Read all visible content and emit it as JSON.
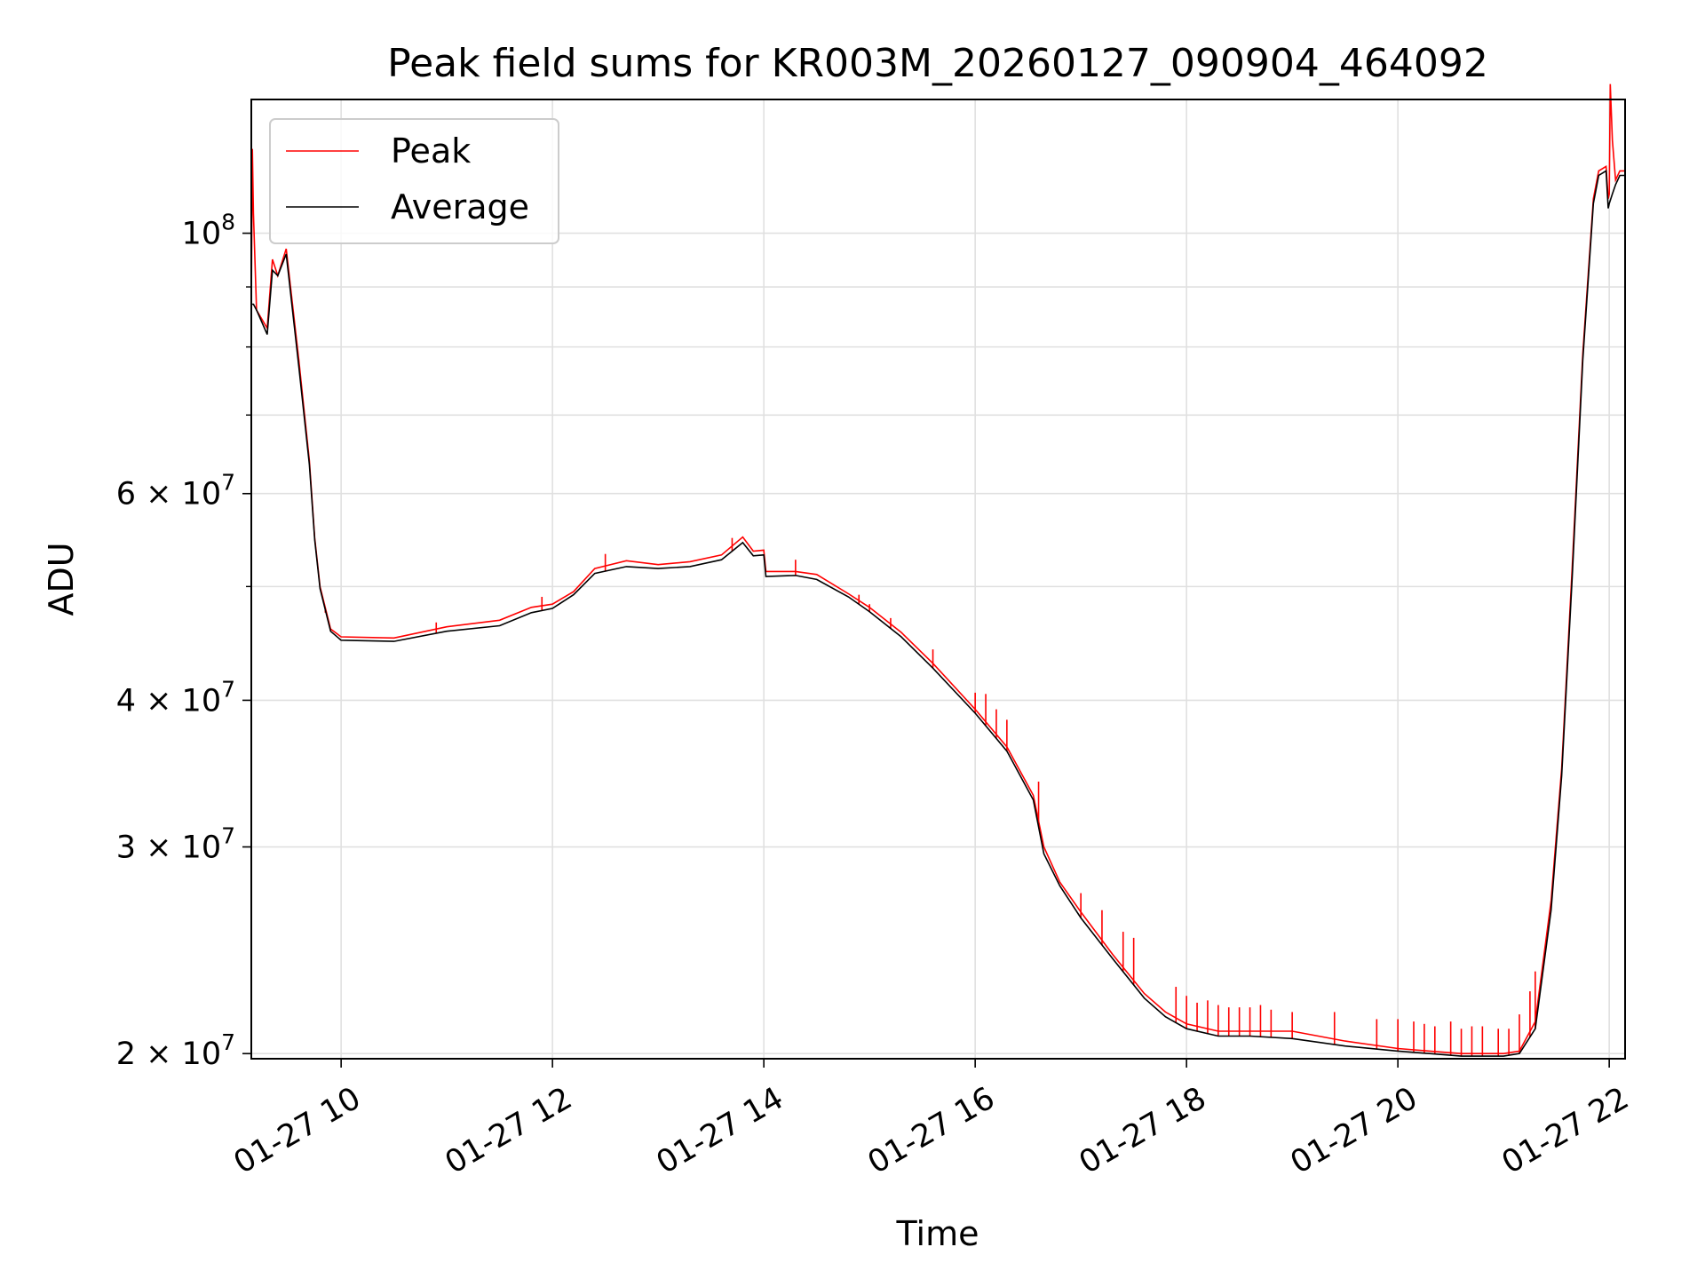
{
  "chart_data": {
    "type": "line",
    "title": "Peak field sums for KR003M_20260127_090904_464092",
    "xlabel": "Time",
    "ylabel": "ADU",
    "yscale": "log",
    "grid": true,
    "legend_location": "top-left",
    "xlim_hours": [
      9.15,
      22.15
    ],
    "ylim": [
      19800000,
      130000000
    ],
    "x_ticks": [
      {
        "value": 10,
        "label": "01-27 10"
      },
      {
        "value": 12,
        "label": "01-27 12"
      },
      {
        "value": 14,
        "label": "01-27 14"
      },
      {
        "value": 16,
        "label": "01-27 16"
      },
      {
        "value": 18,
        "label": "01-27 18"
      },
      {
        "value": 20,
        "label": "01-27 20"
      },
      {
        "value": 22,
        "label": "01-27 22"
      }
    ],
    "y_major_ticks": [
      {
        "value": 20000000,
        "mantissa": "2",
        "exponent": "7",
        "times": "×"
      },
      {
        "value": 30000000,
        "mantissa": "3",
        "exponent": "7",
        "times": "×"
      },
      {
        "value": 40000000,
        "mantissa": "4",
        "exponent": "7",
        "times": "×"
      },
      {
        "value": 60000000,
        "mantissa": "6",
        "exponent": "7",
        "times": "×"
      },
      {
        "value": 100000000,
        "mantissa": "",
        "exponent": "8",
        "times": ""
      }
    ],
    "y_minor_grid": [
      50000000,
      70000000,
      80000000,
      90000000
    ],
    "y_base": "10",
    "series": [
      {
        "name": "Peak",
        "color": "#ff0000",
        "points": [
          [
            9.15,
            87000000
          ],
          [
            9.16,
            118000000
          ],
          [
            9.17,
            104000000
          ],
          [
            9.2,
            86000000
          ],
          [
            9.3,
            83000000
          ],
          [
            9.35,
            95000000
          ],
          [
            9.4,
            92000000
          ],
          [
            9.48,
            97000000
          ],
          [
            9.6,
            78000000
          ],
          [
            9.7,
            64000000
          ],
          [
            9.75,
            55000000
          ],
          [
            9.8,
            50000000
          ],
          [
            9.9,
            46000000
          ],
          [
            10.0,
            45300000
          ],
          [
            10.5,
            45200000
          ],
          [
            11.0,
            46200000
          ],
          [
            11.5,
            46800000
          ],
          [
            11.8,
            48000000
          ],
          [
            12.0,
            48300000
          ],
          [
            12.2,
            49500000
          ],
          [
            12.4,
            51800000
          ],
          [
            12.7,
            52600000
          ],
          [
            13.0,
            52200000
          ],
          [
            13.3,
            52500000
          ],
          [
            13.6,
            53200000
          ],
          [
            13.8,
            55100000
          ],
          [
            13.9,
            53600000
          ],
          [
            14.0,
            53700000
          ],
          [
            14.02,
            51500000
          ],
          [
            14.3,
            51500000
          ],
          [
            14.5,
            51200000
          ],
          [
            14.8,
            49300000
          ],
          [
            15.0,
            48000000
          ],
          [
            15.3,
            45700000
          ],
          [
            15.6,
            43000000
          ],
          [
            16.0,
            39300000
          ],
          [
            16.3,
            36500000
          ],
          [
            16.55,
            33200000
          ],
          [
            16.65,
            30000000
          ],
          [
            16.8,
            28000000
          ],
          [
            17.0,
            26400000
          ],
          [
            17.3,
            24300000
          ],
          [
            17.6,
            22500000
          ],
          [
            17.8,
            21700000
          ],
          [
            18.0,
            21200000
          ],
          [
            18.3,
            20900000
          ],
          [
            18.6,
            20900000
          ],
          [
            19.0,
            20900000
          ],
          [
            19.5,
            20500000
          ],
          [
            20.0,
            20200000
          ],
          [
            20.3,
            20100000
          ],
          [
            20.6,
            20000000
          ],
          [
            20.8,
            20000000
          ],
          [
            21.0,
            20000000
          ],
          [
            21.15,
            20100000
          ],
          [
            21.3,
            21300000
          ],
          [
            21.45,
            27000000
          ],
          [
            21.55,
            35000000
          ],
          [
            21.65,
            52000000
          ],
          [
            21.75,
            79000000
          ],
          [
            21.85,
            107000000
          ],
          [
            21.9,
            113000000
          ],
          [
            21.97,
            114000000
          ],
          [
            21.99,
            107000000
          ],
          [
            22.0,
            108000000
          ],
          [
            22.01,
            134000000
          ],
          [
            22.03,
            120000000
          ],
          [
            22.06,
            111000000
          ],
          [
            22.1,
            113000000
          ],
          [
            22.15,
            113000000
          ]
        ],
        "spikes": [
          [
            9.85,
            47500000
          ],
          [
            10.9,
            46600000
          ],
          [
            11.9,
            49000000
          ],
          [
            12.5,
            53300000
          ],
          [
            13.7,
            55000000
          ],
          [
            14.3,
            52700000
          ],
          [
            14.9,
            49200000
          ],
          [
            15.0,
            48300000
          ],
          [
            15.2,
            47000000
          ],
          [
            15.6,
            44200000
          ],
          [
            16.0,
            40600000
          ],
          [
            16.1,
            40500000
          ],
          [
            16.2,
            39300000
          ],
          [
            16.3,
            38500000
          ],
          [
            16.6,
            34100000
          ],
          [
            17.0,
            27400000
          ],
          [
            17.2,
            26500000
          ],
          [
            17.4,
            25400000
          ],
          [
            17.5,
            25100000
          ],
          [
            17.9,
            22800000
          ],
          [
            18.0,
            22400000
          ],
          [
            18.1,
            22100000
          ],
          [
            18.2,
            22200000
          ],
          [
            18.3,
            22000000
          ],
          [
            18.4,
            21900000
          ],
          [
            18.5,
            21900000
          ],
          [
            18.6,
            21900000
          ],
          [
            18.7,
            22000000
          ],
          [
            18.8,
            21800000
          ],
          [
            19.0,
            21700000
          ],
          [
            19.4,
            21700000
          ],
          [
            19.8,
            21400000
          ],
          [
            20.0,
            21400000
          ],
          [
            20.15,
            21300000
          ],
          [
            20.25,
            21200000
          ],
          [
            20.35,
            21100000
          ],
          [
            20.5,
            21300000
          ],
          [
            20.6,
            21000000
          ],
          [
            20.7,
            21100000
          ],
          [
            20.8,
            21100000
          ],
          [
            20.95,
            21000000
          ],
          [
            21.05,
            21000000
          ],
          [
            21.15,
            21600000
          ],
          [
            21.25,
            22600000
          ],
          [
            21.3,
            23500000
          ]
        ]
      },
      {
        "name": "Average",
        "color": "#000000",
        "points": [
          [
            9.15,
            87000000
          ],
          [
            9.17,
            87000000
          ],
          [
            9.2,
            86000000
          ],
          [
            9.3,
            82000000
          ],
          [
            9.35,
            93000000
          ],
          [
            9.4,
            92000000
          ],
          [
            9.48,
            96000000
          ],
          [
            9.6,
            77000000
          ],
          [
            9.7,
            63500000
          ],
          [
            9.75,
            54800000
          ],
          [
            9.8,
            49800000
          ],
          [
            9.9,
            45800000
          ],
          [
            10.0,
            45000000
          ],
          [
            10.5,
            44900000
          ],
          [
            11.0,
            45800000
          ],
          [
            11.5,
            46300000
          ],
          [
            11.8,
            47500000
          ],
          [
            12.0,
            47900000
          ],
          [
            12.2,
            49200000
          ],
          [
            12.4,
            51300000
          ],
          [
            12.7,
            52000000
          ],
          [
            13.0,
            51800000
          ],
          [
            13.3,
            52000000
          ],
          [
            13.6,
            52700000
          ],
          [
            13.8,
            54500000
          ],
          [
            13.9,
            53100000
          ],
          [
            14.0,
            53200000
          ],
          [
            14.02,
            51000000
          ],
          [
            14.3,
            51100000
          ],
          [
            14.5,
            50700000
          ],
          [
            14.8,
            49000000
          ],
          [
            15.0,
            47600000
          ],
          [
            15.3,
            45300000
          ],
          [
            15.6,
            42600000
          ],
          [
            16.0,
            39000000
          ],
          [
            16.3,
            36200000
          ],
          [
            16.55,
            32900000
          ],
          [
            16.65,
            29600000
          ],
          [
            16.8,
            27800000
          ],
          [
            17.0,
            26100000
          ],
          [
            17.3,
            24100000
          ],
          [
            17.6,
            22300000
          ],
          [
            17.8,
            21500000
          ],
          [
            18.0,
            21000000
          ],
          [
            18.3,
            20700000
          ],
          [
            18.6,
            20700000
          ],
          [
            19.0,
            20600000
          ],
          [
            19.5,
            20300000
          ],
          [
            20.0,
            20100000
          ],
          [
            20.3,
            20000000
          ],
          [
            20.6,
            19900000
          ],
          [
            20.8,
            19900000
          ],
          [
            21.0,
            19900000
          ],
          [
            21.15,
            20000000
          ],
          [
            21.3,
            21000000
          ],
          [
            21.45,
            26500000
          ],
          [
            21.55,
            34500000
          ],
          [
            21.65,
            51000000
          ],
          [
            21.75,
            78000000
          ],
          [
            21.85,
            106000000
          ],
          [
            21.9,
            112000000
          ],
          [
            21.97,
            113000000
          ],
          [
            21.99,
            105000000
          ],
          [
            22.0,
            106000000
          ],
          [
            22.03,
            108000000
          ],
          [
            22.06,
            110000000
          ],
          [
            22.1,
            112000000
          ],
          [
            22.15,
            112000000
          ]
        ]
      }
    ]
  }
}
